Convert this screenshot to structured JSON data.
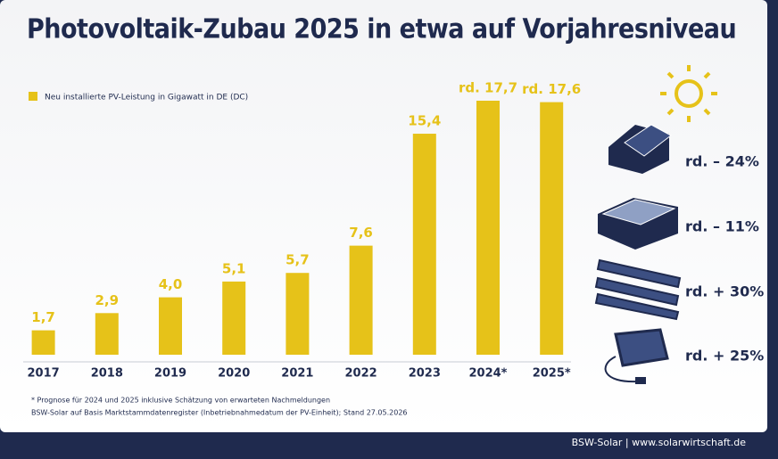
{
  "header": {
    "title": "Photovoltaik-Zubau 2025 in etwa auf Vorjahresniveau"
  },
  "chart_data": {
    "type": "bar",
    "categories": [
      "2017",
      "2018",
      "2019",
      "2020",
      "2021",
      "2022",
      "2023",
      "2024*",
      "2025*"
    ],
    "series": [
      {
        "name": "Neu installierte PV-Leistung in Gigawatt in DE (DC)",
        "color": "#e6c219",
        "values": [
          1.7,
          2.9,
          4.0,
          5.1,
          5.7,
          7.6,
          15.4,
          17.7,
          17.6
        ],
        "value_labels": [
          "1,7",
          "2,9",
          "4,0",
          "5,1",
          "5,7",
          "7,6",
          "15,4",
          "rd. 17,7",
          "rd. 17,6"
        ]
      }
    ]
  },
  "segment_changes": [
    "rd. – 24%",
    "rd. – 11%",
    "rd. + 30%",
    "rd. + 25%"
  ],
  "footnotes": [
    "* Prognose für 2024 und 2025 inklusive Schätzung von erwarteten Nachmeldungen",
    "BSW-Solar auf Basis Marktstammdatenregister (Inbetriebnahmedatum der PV-Einheit); Stand 27.05.2026"
  ],
  "footer": "BSW-Solar | www.solarwirtschaft.de"
}
